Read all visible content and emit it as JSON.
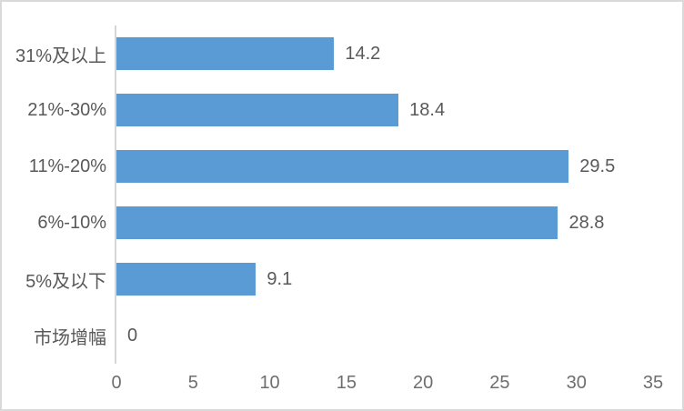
{
  "chart_data": {
    "type": "bar",
    "orientation": "horizontal",
    "title": "",
    "xlabel": "",
    "ylabel": "",
    "categories": [
      "31%及以上",
      "21%-30%",
      "11%-20%",
      "6%-10%",
      "5%及以下",
      "市场增幅"
    ],
    "values": [
      14.2,
      18.4,
      29.5,
      28.8,
      9.1,
      0
    ],
    "value_labels": [
      "14.2",
      "18.4",
      "29.5",
      "28.8",
      "9.1",
      "0"
    ],
    "x_ticks": [
      0,
      5,
      10,
      15,
      20,
      25,
      30,
      35
    ],
    "xlim": [
      0,
      35
    ],
    "grid": false,
    "legend": false,
    "colors": {
      "bar": "#5b9bd5",
      "axis_line": "#d6d6d6",
      "label_text": "#595959",
      "tick_text": "#6e6e6e",
      "frame_border": "#d9d9d9",
      "background": "#ffffff"
    }
  }
}
